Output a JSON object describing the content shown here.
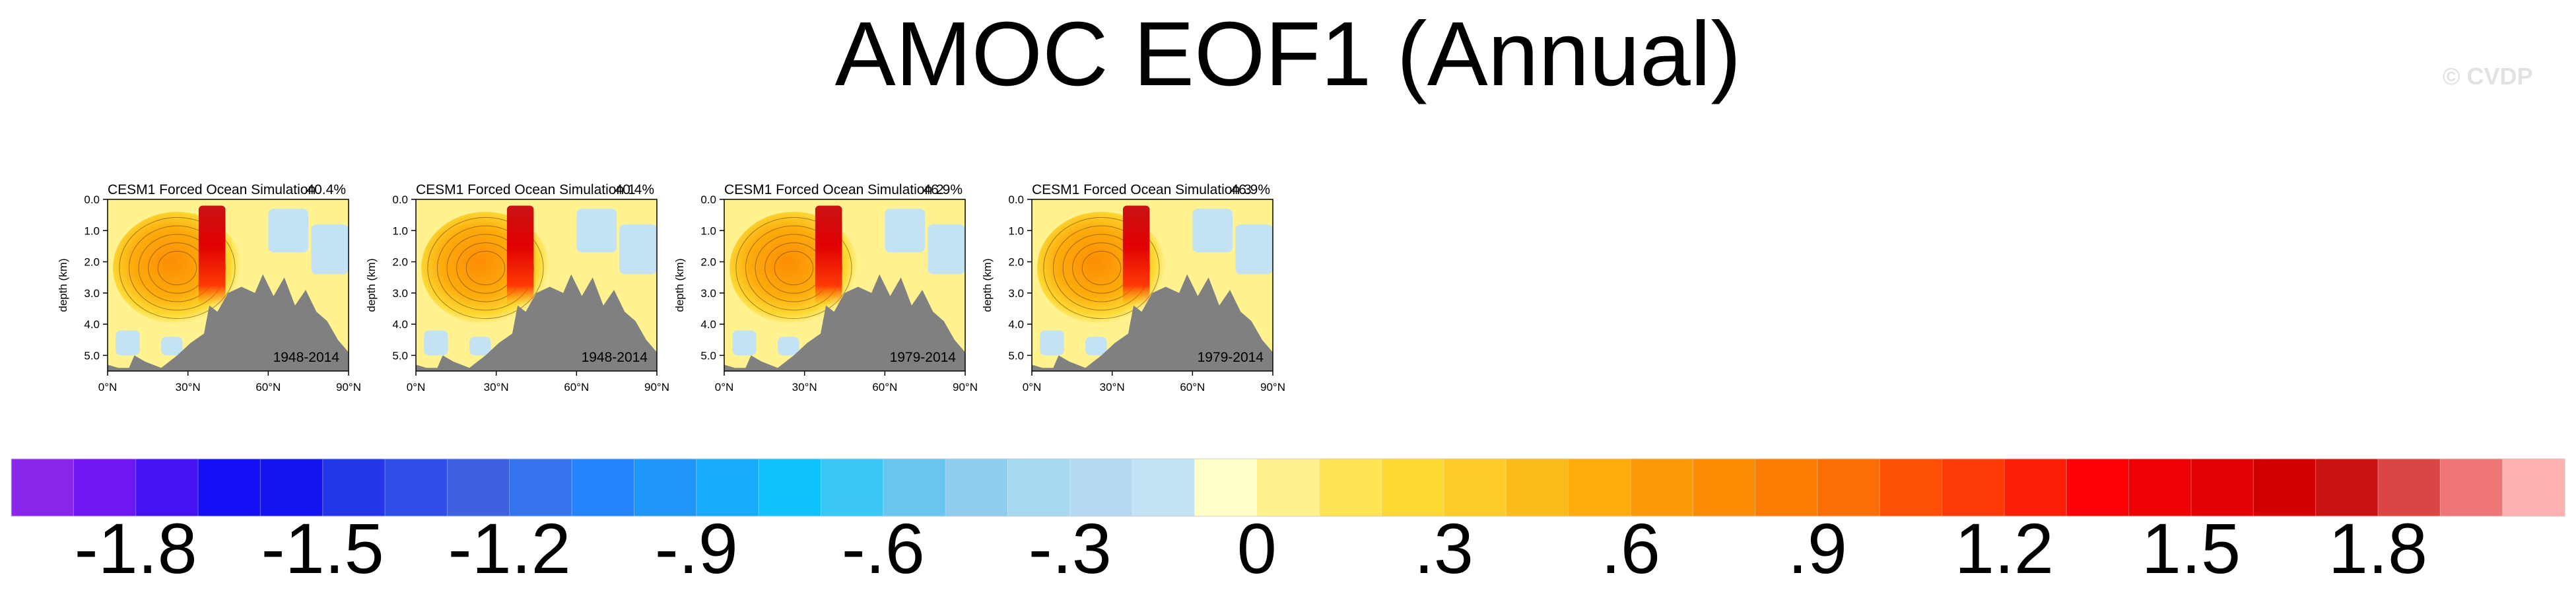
{
  "title": "AMOC EOF1 (Annual)",
  "watermark": "© CVDP",
  "colors": {
    "land": "#808080",
    "text": "#000000"
  },
  "chart_data": {
    "type": "heatmap",
    "panels": [
      {
        "name": "CESM1 Forced Ocean Simulation",
        "pct": "40.4%",
        "period": "1948-2014"
      },
      {
        "name": "CESM1 Forced Ocean Simulation 1",
        "pct": "40.4%",
        "period": "1948-2014"
      },
      {
        "name": "CESM1 Forced Ocean Simulation 2",
        "pct": "46.9%",
        "period": "1979-2014"
      },
      {
        "name": "CESM1 Forced Ocean Simulation 3",
        "pct": "46.9%",
        "period": "1979-2014"
      }
    ],
    "xlabel": "",
    "ylabel": "depth (km)",
    "xticks": [
      "0°N",
      "30°N",
      "60°N",
      "90°N"
    ],
    "yticks": [
      "0.0",
      "1.0",
      "2.0",
      "3.0",
      "4.0",
      "5.0"
    ],
    "xlim": [
      0,
      90
    ],
    "ylim": [
      5.5,
      0
    ],
    "colorbar": {
      "levels_min": -2.0,
      "level_step": 0.1,
      "labels": [
        "-1.8",
        "-1.5",
        "-1.2",
        "-.9",
        "-.6",
        "-.3",
        "0",
        ".3",
        ".6",
        ".9",
        "1.2",
        "1.5",
        "1.8"
      ],
      "colors": [
        "#8a26e9",
        "#6e17f2",
        "#4313f4",
        "#160ff6",
        "#1414f0",
        "#2436ea",
        "#2f4ee8",
        "#3d60de",
        "#3572ee",
        "#2484fb",
        "#1f97f9",
        "#17abf9",
        "#10c2fc",
        "#3bc7f6",
        "#67c5ef",
        "#8fcdee",
        "#a8d7f0",
        "#b3daf1",
        "#c3e2f4",
        "#ffffc7",
        "#fff28f",
        "#ffe553",
        "#fdd934",
        "#fdcc28",
        "#fdbb1b",
        "#fdac0b",
        "#fd9a08",
        "#fd8c05",
        "#fc7d03",
        "#fb6d05",
        "#fd5005",
        "#fd3a05",
        "#fd2008",
        "#fc0006",
        "#ef0004",
        "#e10003",
        "#d20000",
        "#c91313",
        "#dc4545",
        "#ee7676",
        "#ffb0b0"
      ]
    }
  }
}
